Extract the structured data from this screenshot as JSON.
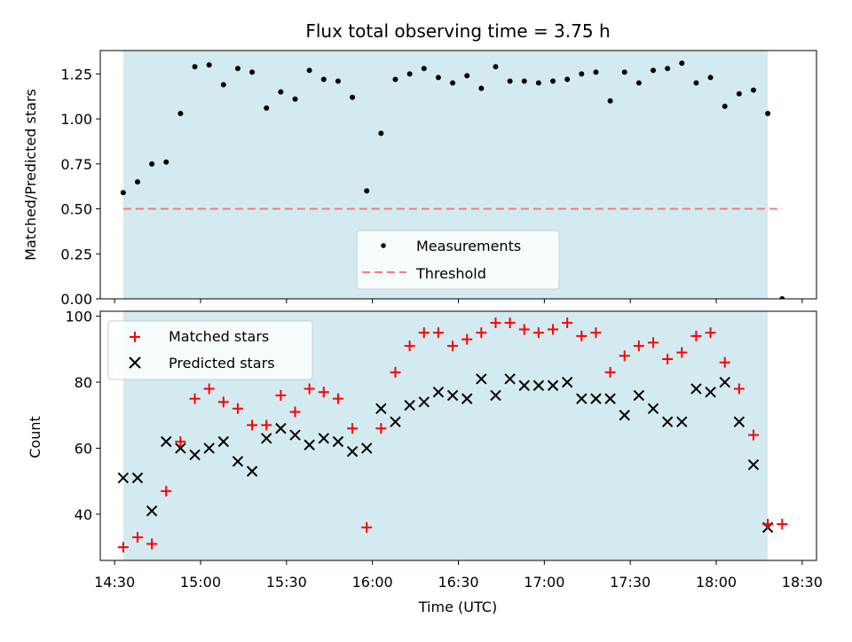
{
  "chart_data": [
    {
      "type": "scatter",
      "title": "Flux total observing time = 3.75 h",
      "xlabel": "",
      "ylabel": "Matched/Predicted stars",
      "xlim": [
        "14:25",
        "18:35"
      ],
      "ylim": [
        0,
        1.38
      ],
      "ytick_labels": [
        "0.00",
        "0.25",
        "0.50",
        "0.75",
        "1.00",
        "1.25"
      ],
      "shaded_interval": [
        "14:33",
        "18:18"
      ],
      "legend": {
        "position": "bottom-center",
        "entries": [
          "Measurements",
          "Threshold"
        ]
      },
      "series": [
        {
          "name": "Measurements",
          "x": [
            "14:33",
            "14:38",
            "14:43",
            "14:48",
            "14:53",
            "14:58",
            "15:03",
            "15:08",
            "15:13",
            "15:18",
            "15:23",
            "15:28",
            "15:33",
            "15:38",
            "15:43",
            "15:48",
            "15:53",
            "15:58",
            "16:03",
            "16:08",
            "16:13",
            "16:18",
            "16:23",
            "16:28",
            "16:33",
            "16:38",
            "16:43",
            "16:48",
            "16:53",
            "16:58",
            "17:03",
            "17:08",
            "17:13",
            "17:18",
            "17:23",
            "17:28",
            "17:33",
            "17:38",
            "17:43",
            "17:48",
            "17:53",
            "17:58",
            "18:03",
            "18:08",
            "18:13",
            "18:18",
            "18:23"
          ],
          "y": [
            0.59,
            0.65,
            0.75,
            0.76,
            1.03,
            1.29,
            1.3,
            1.19,
            1.28,
            1.26,
            1.06,
            1.15,
            1.11,
            1.27,
            1.22,
            1.21,
            1.12,
            0.6,
            0.92,
            1.22,
            1.25,
            1.28,
            1.23,
            1.2,
            1.24,
            1.17,
            1.29,
            1.21,
            1.21,
            1.2,
            1.21,
            1.22,
            1.25,
            1.26,
            1.1,
            1.26,
            1.2,
            1.27,
            1.28,
            1.31,
            1.2,
            1.23,
            1.07,
            1.14,
            1.16,
            1.03,
            0.0
          ]
        },
        {
          "name": "Threshold",
          "x": [
            "14:33",
            "18:23"
          ],
          "y": [
            0.5,
            0.5
          ]
        }
      ]
    },
    {
      "type": "scatter",
      "title": "",
      "xlabel": "Time (UTC)",
      "ylabel": "Count",
      "xlim": [
        "14:25",
        "18:35"
      ],
      "ylim": [
        26,
        101.5
      ],
      "xtick_labels": [
        "14:30",
        "15:00",
        "15:30",
        "16:00",
        "16:30",
        "17:00",
        "17:30",
        "18:00",
        "18:30"
      ],
      "ytick_labels": [
        "40",
        "60",
        "80",
        "100"
      ],
      "shaded_interval": [
        "14:33",
        "18:18"
      ],
      "legend": {
        "position": "top-left",
        "entries": [
          "Matched stars",
          "Predicted stars"
        ]
      },
      "x": [
        "14:33",
        "14:38",
        "14:43",
        "14:48",
        "14:53",
        "14:58",
        "15:03",
        "15:08",
        "15:13",
        "15:18",
        "15:23",
        "15:28",
        "15:33",
        "15:38",
        "15:43",
        "15:48",
        "15:53",
        "15:58",
        "16:03",
        "16:08",
        "16:13",
        "16:18",
        "16:23",
        "16:28",
        "16:33",
        "16:38",
        "16:43",
        "16:48",
        "16:53",
        "16:58",
        "17:03",
        "17:08",
        "17:13",
        "17:18",
        "17:23",
        "17:28",
        "17:33",
        "17:38",
        "17:43",
        "17:48",
        "17:53",
        "17:58",
        "18:03",
        "18:08",
        "18:13",
        "18:18",
        "18:23"
      ],
      "series": [
        {
          "name": "Matched stars",
          "values": [
            30,
            33,
            31,
            47,
            62,
            75,
            78,
            74,
            72,
            67,
            67,
            76,
            71,
            78,
            77,
            75,
            66,
            36,
            66,
            83,
            91,
            95,
            95,
            91,
            93,
            95,
            98,
            98,
            96,
            95,
            96,
            98,
            94,
            95,
            83,
            88,
            91,
            92,
            87,
            89,
            94,
            95,
            86,
            78,
            64,
            37,
            37
          ]
        },
        {
          "name": "Predicted stars",
          "values": [
            51,
            51,
            41,
            62,
            60,
            58,
            60,
            62,
            56,
            53,
            63,
            66,
            64,
            61,
            63,
            62,
            59,
            60,
            72,
            68,
            73,
            74,
            77,
            76,
            75,
            81,
            76,
            81,
            79,
            79,
            79,
            80,
            75,
            75,
            75,
            70,
            76,
            72,
            68,
            68,
            78,
            77,
            80,
            68,
            55,
            36,
            null
          ]
        }
      ]
    }
  ],
  "colors": {
    "shade": "#d2eaf0",
    "measurement": "#000000",
    "threshold": "#f07c7c",
    "matched": "#ff0000",
    "predicted": "#000000"
  }
}
